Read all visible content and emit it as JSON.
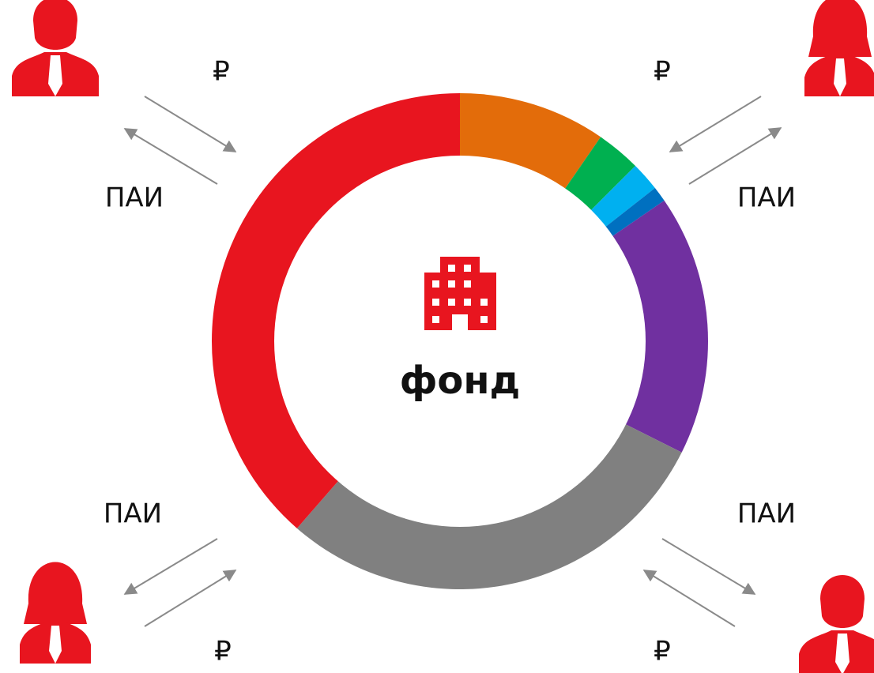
{
  "ring": {
    "segments": [
      {
        "color": "#e36c0a",
        "value": 9.6
      },
      {
        "color": "#00b050",
        "value": 2.9
      },
      {
        "color": "#00b0f0",
        "value": 1.9
      },
      {
        "color": "#0070c0",
        "value": 1.0
      },
      {
        "color": "#7030a0",
        "value": 17.0
      },
      {
        "color": "#808080",
        "value": 29.0
      },
      {
        "color": "#e8151f",
        "value": 38.6
      }
    ]
  },
  "center": {
    "label": "фонд"
  },
  "flows": [
    {
      "money": "₽",
      "units": "ПАИ"
    },
    {
      "money": "₽",
      "units": "ПАИ"
    },
    {
      "money": "₽",
      "units": "ПАИ"
    },
    {
      "money": "₽",
      "units": "ПАИ"
    }
  ]
}
